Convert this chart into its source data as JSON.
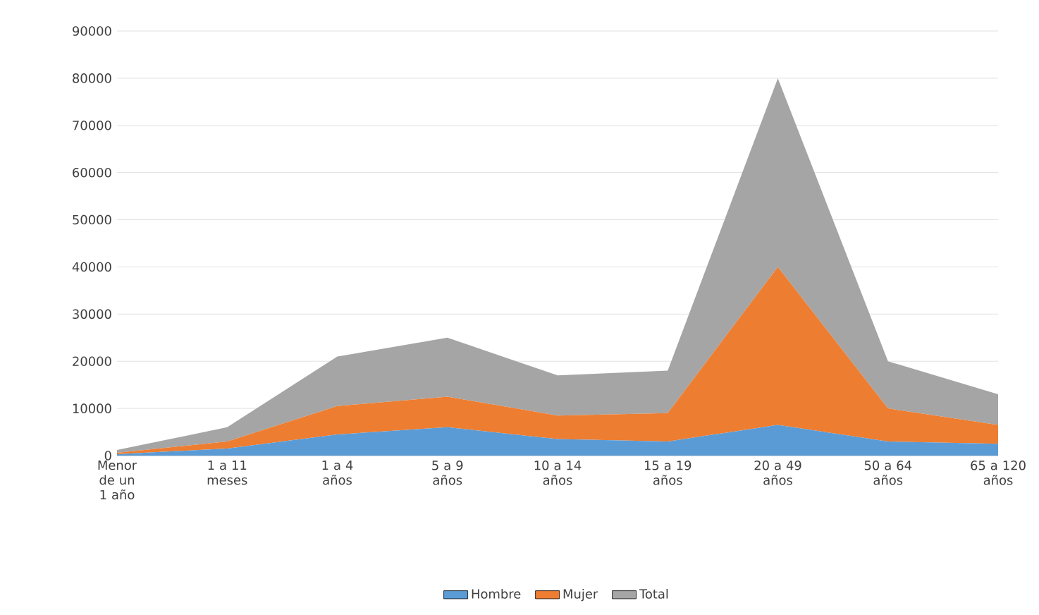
{
  "chart_data": {
    "type": "area",
    "stacked": true,
    "categories": [
      "Menor de un 1 año",
      "1 a 11 meses",
      "1 a 4 años",
      "5 a 9 años",
      "10 a 14 años",
      "15 a 19 años",
      "20 a 49 años",
      "50 a 64 años",
      "65 a 120 años"
    ],
    "series": [
      {
        "name": "Hombre",
        "color": "#5b9bd5",
        "values": [
          300,
          1500,
          4500,
          6000,
          3500,
          3000,
          6500,
          3000,
          2500
        ]
      },
      {
        "name": "Mujer",
        "color": "#ed7d31",
        "values": [
          300,
          1500,
          6000,
          6500,
          5000,
          6000,
          33500,
          7000,
          4000
        ]
      },
      {
        "name": "Total",
        "color": "#a5a5a5",
        "values": [
          600,
          3000,
          10500,
          12500,
          8500,
          9000,
          40000,
          10000,
          6500
        ]
      }
    ],
    "ylim": [
      0,
      90000
    ],
    "yticks": [
      0,
      10000,
      20000,
      30000,
      40000,
      50000,
      60000,
      70000,
      80000,
      90000
    ],
    "grid": "y",
    "legend": "bottom"
  }
}
